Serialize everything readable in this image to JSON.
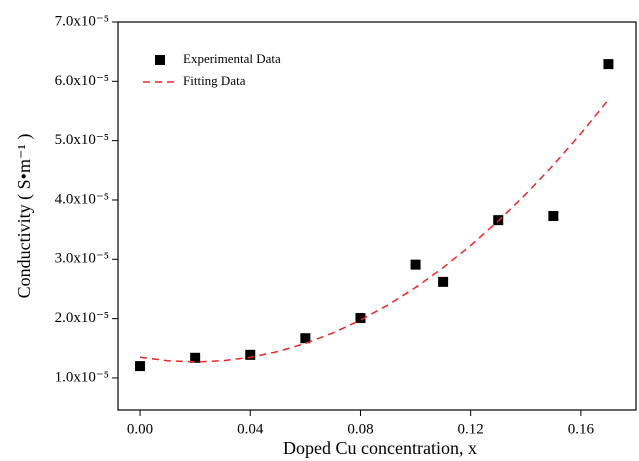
{
  "chart_data": {
    "type": "scatter",
    "xlabel": "Doped Cu concentration, x",
    "ylabel": "Conductivity ( S•m⁻¹ )",
    "xlim": [
      -0.008,
      0.18
    ],
    "ylim": [
      4.6e-06,
      7e-05
    ],
    "xticks": [
      {
        "value": 0,
        "label": "0.00"
      },
      {
        "value": 0.04,
        "label": "0.04"
      },
      {
        "value": 0.08,
        "label": "0.08"
      },
      {
        "value": 0.12,
        "label": "0.12"
      },
      {
        "value": 0.16,
        "label": "0.16"
      }
    ],
    "yticks": [
      {
        "value": 1e-05,
        "label": "1.0x10⁻⁵"
      },
      {
        "value": 2e-05,
        "label": "2.0x10⁻⁵"
      },
      {
        "value": 3e-05,
        "label": "3.0x10⁻⁵"
      },
      {
        "value": 4e-05,
        "label": "4.0x10⁻⁵"
      },
      {
        "value": 5e-05,
        "label": "5.0x10⁻⁵"
      },
      {
        "value": 6e-05,
        "label": "6.0x10⁻⁵"
      },
      {
        "value": 7e-05,
        "label": "7.0x10⁻⁵"
      }
    ],
    "legend": "upper-left",
    "series": [
      {
        "name": "Experimental Data",
        "color": "#000000",
        "style": "marker",
        "x": [
          0,
          0.02,
          0.04,
          0.06,
          0.08,
          0.1,
          0.11,
          0.13,
          0.15,
          0.17
        ],
        "values": [
          1.2e-05,
          1.34e-05,
          1.39e-05,
          1.67e-05,
          2.01e-05,
          2.91e-05,
          2.62e-05,
          3.66e-05,
          3.73e-05,
          6.29e-05
        ]
      },
      {
        "name": "Fitting Data",
        "color": "#e8262a",
        "style": "dashed",
        "x": [
          0,
          0.01,
          0.02,
          0.03,
          0.04,
          0.05,
          0.06,
          0.07,
          0.08,
          0.09,
          0.1,
          0.11,
          0.12,
          0.13,
          0.14,
          0.15,
          0.16,
          0.17
        ],
        "values": [
          1.35e-05,
          1.29e-05,
          1.27e-05,
          1.29e-05,
          1.347e-05,
          1.445e-05,
          1.582e-05,
          1.759e-05,
          1.975e-05,
          2.23e-05,
          2.525e-05,
          2.859e-05,
          3.233e-05,
          3.645e-05,
          4.098e-05,
          4.589e-05,
          5.12e-05,
          5.691e-05
        ]
      }
    ]
  }
}
